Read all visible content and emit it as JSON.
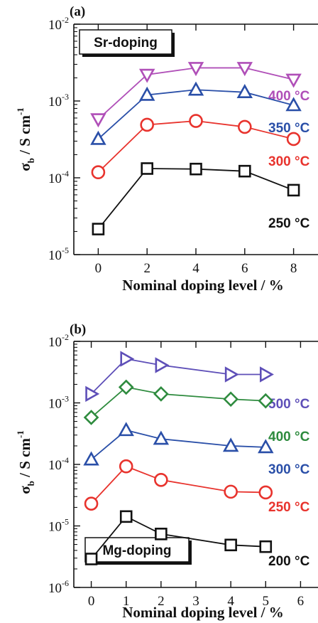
{
  "chart_data": [
    {
      "type": "line",
      "panel": "(a)",
      "box_label": "Sr-doping",
      "xlabel": "Nominal doping level / %",
      "ylabel": "σb / S cm-1",
      "xlim": [
        -1,
        9
      ],
      "ylim": [
        1e-05,
        0.01
      ],
      "yscale": "log",
      "x_ticks": [
        "0",
        "2",
        "4",
        "6",
        "8"
      ],
      "y_ticks": [
        {
          "base": "10",
          "exp": "-2"
        },
        {
          "base": "10",
          "exp": "-3"
        },
        {
          "base": "10",
          "exp": "-4"
        },
        {
          "base": "10",
          "exp": "-5"
        }
      ],
      "x": [
        0,
        2,
        4,
        6,
        8
      ],
      "series": [
        {
          "name": "400 °C",
          "color": "#b04fb8",
          "marker": "triangle-down",
          "values": [
            0.00058,
            0.0022,
            0.0027,
            0.0027,
            0.0019
          ]
        },
        {
          "name": "350 °C",
          "color": "#2a4fa8",
          "marker": "triangle-up",
          "values": [
            0.00032,
            0.0012,
            0.0014,
            0.0013,
            0.00088
          ]
        },
        {
          "name": "300 °C",
          "color": "#e8332d",
          "marker": "circle",
          "values": [
            0.000118,
            0.00049,
            0.00055,
            0.00046,
            0.00032
          ]
        },
        {
          "name": "250 °C",
          "color": "#111111",
          "marker": "square",
          "values": [
            2.15e-05,
            0.000132,
            0.00013,
            0.000122,
            6.9e-05
          ]
        }
      ]
    },
    {
      "type": "line",
      "panel": "(b)",
      "box_label": "Mg-doping",
      "xlabel": "Nominal doping level / %",
      "ylabel": "σb / S cm-1",
      "xlim": [
        -0.5,
        6.5
      ],
      "ylim": [
        1e-06,
        0.01
      ],
      "yscale": "log",
      "x_ticks": [
        "0",
        "1",
        "2",
        "3",
        "4",
        "5",
        "6"
      ],
      "y_ticks": [
        {
          "base": "10",
          "exp": "-2"
        },
        {
          "base": "10",
          "exp": "-3"
        },
        {
          "base": "10",
          "exp": "-4"
        },
        {
          "base": "10",
          "exp": "-5"
        },
        {
          "base": "10",
          "exp": "-6"
        }
      ],
      "x": [
        0,
        1,
        2,
        4,
        5
      ],
      "series": [
        {
          "name": "500 °C",
          "color": "#5e4fb8",
          "marker": "triangle-right",
          "values": [
            0.0014,
            0.0052,
            0.0041,
            0.0029,
            0.0029
          ]
        },
        {
          "name": "400 °C",
          "color": "#2e8b3e",
          "marker": "diamond",
          "values": [
            0.00058,
            0.0018,
            0.0014,
            0.00115,
            0.00108
          ]
        },
        {
          "name": "300 °C",
          "color": "#2a4fa8",
          "marker": "triangle-up",
          "values": [
            0.00012,
            0.00036,
            0.00026,
            0.0002,
            0.00019
          ]
        },
        {
          "name": "250 °C",
          "color": "#e8332d",
          "marker": "circle",
          "values": [
            2.3e-05,
            9.3e-05,
            5.6e-05,
            3.6e-05,
            3.5e-05
          ]
        },
        {
          "name": "200 °C",
          "color": "#111111",
          "marker": "square",
          "values": [
            2.9e-06,
            1.42e-05,
            7.4e-06,
            4.9e-06,
            4.6e-06
          ]
        }
      ]
    }
  ]
}
